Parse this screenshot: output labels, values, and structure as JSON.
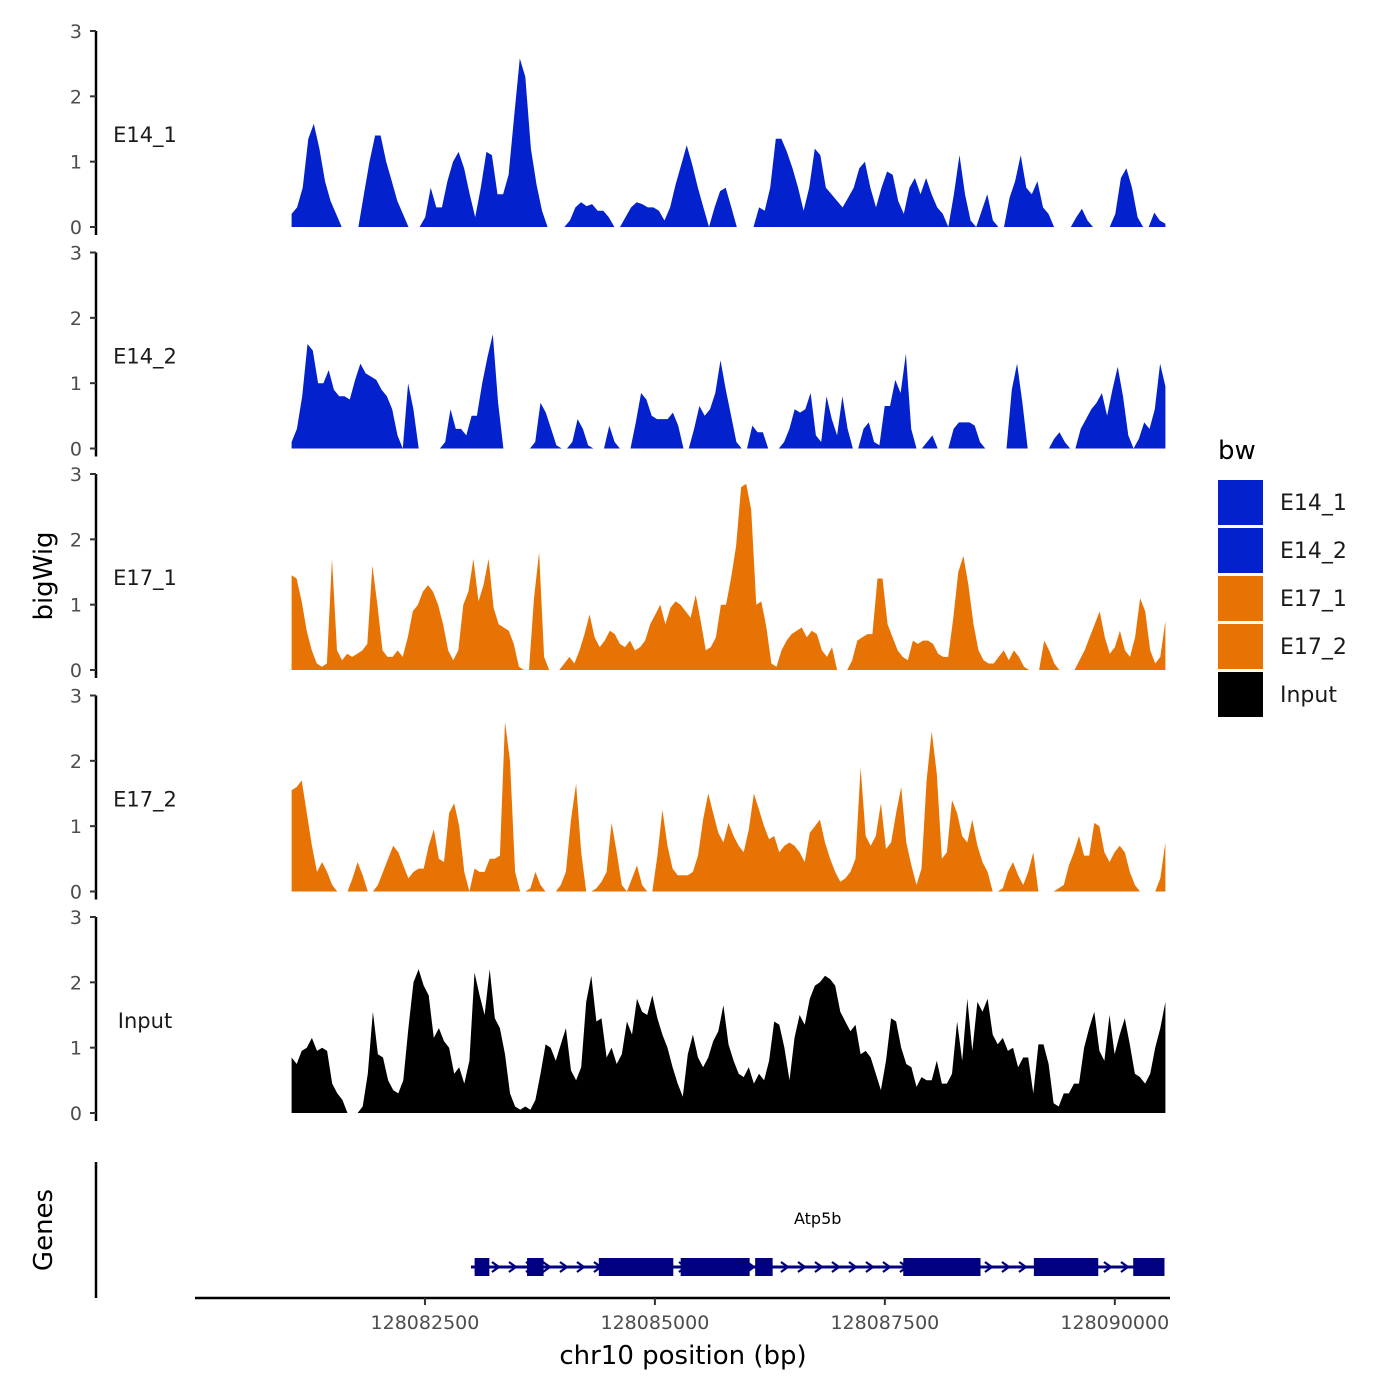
{
  "chart_data": {
    "type": "area",
    "title": "",
    "ylabel": "bigWig",
    "gene_panel_label": "Genes",
    "xlabel": "chr10 position (bp)",
    "xlim": [
      128080000,
      128090600
    ],
    "data_xrange": [
      128081050,
      128090550
    ],
    "x_ticks": [
      128082500,
      128085000,
      128087500,
      128090000
    ],
    "x_tick_labels": [
      "128082500",
      "128085000",
      "128087500",
      "128090000"
    ],
    "ylim": [
      0,
      3
    ],
    "y_ticks": [
      0,
      1,
      2,
      3
    ],
    "y_tick_labels": [
      "0",
      "1",
      "2",
      "3"
    ],
    "legend": {
      "title": "bw",
      "position": "right",
      "entries": [
        {
          "label": "E14_1",
          "color": "#0321CC"
        },
        {
          "label": "E14_2",
          "color": "#0321CC"
        },
        {
          "label": "E17_1",
          "color": "#E87305"
        },
        {
          "label": "E17_2",
          "color": "#E87305"
        },
        {
          "label": "Input",
          "color": "#000000"
        }
      ]
    },
    "series": [
      {
        "name": "E14_1",
        "color": "#0321CC",
        "values": [
          0.2,
          0.3,
          0.6,
          1.35,
          1.58,
          1.2,
          0.7,
          0.4,
          0.2,
          0.0,
          0.0,
          0.0,
          0.0,
          0.5,
          1.0,
          1.4,
          1.4,
          1.0,
          0.7,
          0.4,
          0.2,
          0.0,
          0.0,
          0.0,
          0.15,
          0.6,
          0.3,
          0.3,
          0.7,
          1.0,
          1.15,
          0.9,
          0.5,
          0.15,
          0.6,
          1.15,
          1.1,
          0.5,
          0.5,
          0.8,
          1.7,
          2.58,
          2.3,
          1.2,
          0.65,
          0.25,
          0.0,
          0.0,
          0.0,
          0.0,
          0.1,
          0.3,
          0.38,
          0.32,
          0.35,
          0.25,
          0.25,
          0.15,
          0.0,
          0.0,
          0.15,
          0.3,
          0.38,
          0.35,
          0.3,
          0.3,
          0.25,
          0.1,
          0.3,
          0.65,
          0.95,
          1.25,
          0.95,
          0.6,
          0.3,
          0.0,
          0.3,
          0.55,
          0.6,
          0.3,
          0.0,
          0.0,
          0.0,
          0.0,
          0.3,
          0.25,
          0.6,
          1.35,
          1.35,
          1.15,
          0.9,
          0.6,
          0.25,
          0.6,
          1.2,
          1.1,
          0.6,
          0.5,
          0.4,
          0.3,
          0.45,
          0.6,
          0.9,
          1.0,
          0.6,
          0.3,
          0.6,
          0.85,
          0.8,
          0.4,
          0.2,
          0.6,
          0.75,
          0.5,
          0.75,
          0.5,
          0.3,
          0.2,
          0.0,
          0.5,
          1.1,
          0.5,
          0.1,
          0.0,
          0.25,
          0.5,
          0.1,
          0.0,
          0.0,
          0.45,
          0.7,
          1.1,
          0.6,
          0.5,
          0.7,
          0.3,
          0.2,
          0.0,
          0.0,
          0.0,
          0.0,
          0.15,
          0.28,
          0.1,
          0.0,
          0.0,
          0.0,
          0.0,
          0.2,
          0.75,
          0.9,
          0.6,
          0.15,
          0.0,
          0.0,
          0.22,
          0.1,
          0.05
        ]
      },
      {
        "name": "E14_2",
        "color": "#0321CC",
        "values": [
          0.1,
          0.3,
          0.8,
          1.6,
          1.5,
          1.0,
          1.0,
          1.2,
          0.9,
          0.8,
          0.8,
          0.75,
          1.05,
          1.3,
          1.15,
          1.1,
          1.05,
          0.9,
          0.8,
          0.6,
          0.2,
          0.0,
          1.0,
          0.6,
          0.0,
          0.0,
          0.0,
          0.0,
          0.0,
          0.1,
          0.6,
          0.3,
          0.3,
          0.2,
          0.5,
          0.5,
          1.0,
          1.4,
          1.75,
          0.7,
          0.0,
          0.0,
          0.0,
          0.0,
          0.0,
          0.0,
          0.1,
          0.7,
          0.55,
          0.3,
          0.05,
          0.0,
          0.0,
          0.1,
          0.45,
          0.3,
          0.05,
          0.0,
          0.0,
          0.0,
          0.35,
          0.1,
          0.0,
          0.0,
          0.0,
          0.4,
          0.85,
          0.75,
          0.5,
          0.45,
          0.45,
          0.45,
          0.55,
          0.35,
          0.0,
          0.0,
          0.3,
          0.65,
          0.5,
          0.6,
          0.85,
          1.35,
          0.9,
          0.5,
          0.1,
          0.0,
          0.0,
          0.35,
          0.25,
          0.25,
          0.0,
          0.0,
          0.0,
          0.1,
          0.3,
          0.6,
          0.55,
          0.6,
          0.85,
          0.2,
          0.1,
          0.8,
          0.45,
          0.2,
          0.8,
          0.3,
          0.0,
          0.0,
          0.3,
          0.4,
          0.1,
          0.05,
          0.65,
          0.65,
          1.05,
          0.85,
          1.45,
          0.3,
          0.0,
          0.0,
          0.1,
          0.2,
          0.0,
          0.0,
          0.0,
          0.3,
          0.4,
          0.4,
          0.4,
          0.35,
          0.1,
          0.0,
          0.0,
          0.0,
          0.0,
          0.0,
          0.9,
          1.3,
          0.7,
          0.0,
          0.0,
          0.0,
          0.0,
          0.0,
          0.15,
          0.25,
          0.1,
          0.0,
          0.0,
          0.3,
          0.45,
          0.6,
          0.7,
          0.85,
          0.5,
          0.9,
          1.25,
          0.8,
          0.2,
          0.0,
          0.15,
          0.4,
          0.3,
          0.6,
          1.3,
          0.95
        ]
      },
      {
        "name": "E17_1",
        "color": "#E87305",
        "values": [
          1.45,
          1.4,
          1.05,
          0.6,
          0.3,
          0.1,
          0.05,
          0.1,
          1.7,
          0.3,
          0.15,
          0.25,
          0.2,
          0.25,
          0.3,
          0.4,
          1.6,
          1.0,
          0.3,
          0.2,
          0.2,
          0.3,
          0.2,
          0.5,
          0.9,
          1.0,
          1.2,
          1.3,
          1.2,
          1.0,
          0.7,
          0.3,
          0.15,
          0.3,
          1.0,
          1.2,
          1.7,
          1.05,
          1.3,
          1.7,
          0.95,
          0.7,
          0.65,
          0.6,
          0.4,
          0.05,
          0.0,
          0.0,
          1.1,
          1.8,
          0.2,
          0.0,
          0.0,
          0.0,
          0.1,
          0.2,
          0.1,
          0.3,
          0.55,
          0.85,
          0.5,
          0.35,
          0.45,
          0.6,
          0.55,
          0.4,
          0.35,
          0.45,
          0.3,
          0.35,
          0.45,
          0.7,
          0.85,
          1.0,
          0.7,
          0.95,
          1.05,
          1.0,
          0.9,
          0.8,
          1.15,
          0.75,
          0.3,
          0.35,
          0.5,
          1.0,
          1.0,
          1.4,
          1.9,
          2.8,
          2.85,
          2.45,
          1.0,
          1.05,
          0.65,
          0.1,
          0.05,
          0.3,
          0.45,
          0.55,
          0.6,
          0.65,
          0.5,
          0.6,
          0.55,
          0.3,
          0.2,
          0.35,
          0.0,
          0.0,
          0.0,
          0.15,
          0.45,
          0.5,
          0.55,
          0.55,
          1.4,
          1.4,
          0.7,
          0.5,
          0.3,
          0.2,
          0.15,
          0.45,
          0.4,
          0.45,
          0.45,
          0.4,
          0.25,
          0.2,
          0.2,
          0.8,
          1.5,
          1.75,
          1.3,
          0.7,
          0.3,
          0.15,
          0.1,
          0.1,
          0.2,
          0.3,
          0.15,
          0.3,
          0.2,
          0.05,
          0.0,
          0.0,
          0.0,
          0.45,
          0.3,
          0.1,
          0.0,
          0.0,
          0.0,
          0.0,
          0.15,
          0.3,
          0.5,
          0.7,
          0.9,
          0.5,
          0.25,
          0.35,
          0.6,
          0.3,
          0.2,
          0.5,
          1.1,
          0.9,
          0.3,
          0.1,
          0.2,
          0.75
        ]
      },
      {
        "name": "E17_2",
        "color": "#E87305",
        "values": [
          1.55,
          1.6,
          1.7,
          1.2,
          0.7,
          0.3,
          0.45,
          0.3,
          0.1,
          0.0,
          0.0,
          0.0,
          0.2,
          0.45,
          0.25,
          0.0,
          0.0,
          0.1,
          0.3,
          0.5,
          0.7,
          0.6,
          0.4,
          0.2,
          0.3,
          0.35,
          0.35,
          0.7,
          0.95,
          0.5,
          0.45,
          1.2,
          1.35,
          1.0,
          0.3,
          0.0,
          0.35,
          0.3,
          0.3,
          0.5,
          0.5,
          0.55,
          2.6,
          2.0,
          0.3,
          0.0,
          0.0,
          0.05,
          0.3,
          0.1,
          0.0,
          0.0,
          0.0,
          0.1,
          0.3,
          1.1,
          1.65,
          0.6,
          0.0,
          0.0,
          0.05,
          0.15,
          0.3,
          1.05,
          0.6,
          0.1,
          0.0,
          0.2,
          0.4,
          0.1,
          0.0,
          0.0,
          0.55,
          1.25,
          0.7,
          0.35,
          0.25,
          0.25,
          0.25,
          0.3,
          0.55,
          1.1,
          1.5,
          1.2,
          0.9,
          0.75,
          1.05,
          0.85,
          0.7,
          0.6,
          0.95,
          1.5,
          1.25,
          1.0,
          0.8,
          0.85,
          0.6,
          0.7,
          0.75,
          0.7,
          0.6,
          0.45,
          0.9,
          1.0,
          1.1,
          0.75,
          0.5,
          0.3,
          0.15,
          0.2,
          0.3,
          0.5,
          1.9,
          0.85,
          0.7,
          0.85,
          1.35,
          0.65,
          0.75,
          1.2,
          1.6,
          0.75,
          0.4,
          0.1,
          0.35,
          1.7,
          2.45,
          1.8,
          0.5,
          0.6,
          1.4,
          1.2,
          0.85,
          0.75,
          1.1,
          0.7,
          0.45,
          0.3,
          0.0,
          0.0,
          0.05,
          0.3,
          0.45,
          0.25,
          0.1,
          0.3,
          0.6,
          0.0,
          0.0,
          0.0,
          0.0,
          0.05,
          0.1,
          0.4,
          0.6,
          0.85,
          0.55,
          0.55,
          1.05,
          1.0,
          0.6,
          0.45,
          0.6,
          0.7,
          0.6,
          0.3,
          0.1,
          0.0,
          0.0,
          0.0,
          0.0,
          0.2,
          0.75
        ]
      },
      {
        "name": "Input",
        "color": "#000000",
        "values": [
          0.85,
          0.75,
          0.95,
          1.0,
          1.15,
          0.95,
          1.0,
          0.95,
          0.45,
          0.3,
          0.2,
          0.0,
          0.0,
          0.0,
          0.1,
          0.6,
          1.55,
          0.9,
          0.85,
          0.5,
          0.35,
          0.3,
          0.5,
          1.3,
          2.0,
          2.2,
          1.95,
          1.8,
          1.15,
          1.3,
          1.1,
          1.0,
          0.6,
          0.7,
          0.45,
          0.8,
          2.15,
          1.8,
          1.5,
          2.2,
          1.45,
          1.3,
          0.9,
          0.3,
          0.1,
          0.05,
          0.1,
          0.05,
          0.2,
          0.6,
          1.05,
          1.0,
          0.8,
          1.05,
          1.3,
          0.65,
          0.5,
          0.7,
          1.7,
          2.1,
          1.4,
          1.45,
          0.85,
          1.0,
          0.75,
          0.9,
          1.4,
          1.2,
          1.75,
          1.55,
          1.5,
          1.8,
          1.45,
          1.2,
          1.0,
          0.7,
          0.45,
          0.25,
          0.9,
          1.2,
          0.85,
          0.7,
          0.85,
          1.1,
          1.25,
          1.65,
          1.05,
          0.8,
          0.6,
          0.55,
          0.7,
          0.45,
          0.6,
          0.5,
          0.8,
          1.4,
          1.35,
          1.0,
          0.5,
          1.15,
          1.5,
          1.35,
          1.75,
          1.95,
          2.0,
          2.1,
          2.05,
          1.95,
          1.55,
          1.4,
          1.25,
          1.35,
          0.9,
          0.95,
          0.85,
          0.6,
          0.35,
          0.8,
          1.45,
          1.4,
          1.0,
          0.75,
          0.7,
          0.4,
          0.55,
          0.5,
          0.5,
          0.8,
          0.45,
          0.45,
          0.6,
          1.4,
          0.8,
          1.75,
          0.95,
          1.7,
          1.55,
          1.75,
          1.2,
          1.05,
          1.15,
          0.95,
          1.0,
          0.7,
          0.85,
          0.85,
          0.3,
          1.05,
          1.05,
          0.75,
          0.15,
          0.1,
          0.3,
          0.3,
          0.45,
          0.45,
          1.0,
          1.3,
          1.55,
          0.95,
          0.8,
          1.5,
          0.9,
          1.2,
          1.45,
          1.05,
          0.6,
          0.55,
          0.45,
          0.6,
          1.0,
          1.3,
          1.7
        ]
      }
    ],
    "gene_track": {
      "gene_name": "Atp5b",
      "strand": "+",
      "transcript_range": [
        128083000,
        128090540
      ],
      "exons": [
        [
          128083040,
          128083200
        ],
        [
          128083610,
          128083790
        ],
        [
          128084390,
          128085200
        ],
        [
          128085280,
          128086030
        ],
        [
          128086090,
          128086280
        ],
        [
          128087700,
          128088540
        ],
        [
          128089120,
          128089820
        ],
        [
          128090200,
          128090540
        ]
      ]
    }
  }
}
